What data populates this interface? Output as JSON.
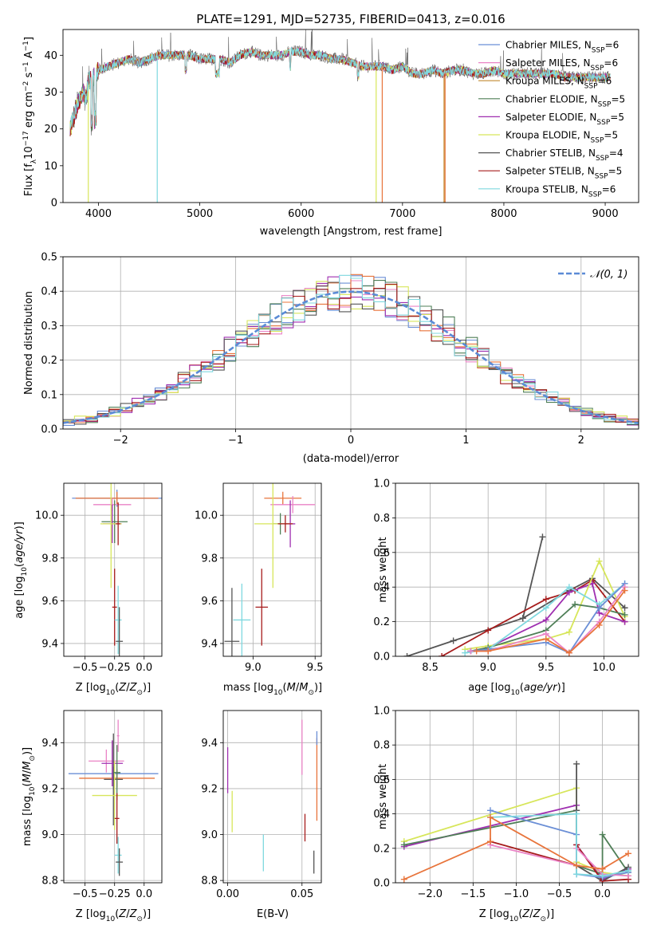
{
  "figure": {
    "title": "PLATE=1291, MJD=52735, FIBERID=0413, z=0.016"
  },
  "colors": [
    "#6b8fd6",
    "#ea83c6",
    "#c08a30",
    "#4f7f57",
    "#9f2fb0",
    "#d7e65a",
    "#555555",
    "#a61c1c",
    "#7fd8df"
  ],
  "chart_data": [
    {
      "id": "spectrum",
      "type": "line",
      "title": "PLATE=1291, MJD=52735, FIBERID=0413, z=0.016",
      "xlabel": "wavelength [Angstrom, rest frame]",
      "ylabel": "Flux [fλ10⁻¹⁷ erg cm⁻² s⁻¹ Å⁻¹]",
      "xlim": [
        3650,
        9330
      ],
      "ylim": [
        0,
        47
      ],
      "xticks": [
        4000,
        5000,
        6000,
        7000,
        8000,
        9000
      ],
      "yticks": [
        0,
        10,
        20,
        30,
        40
      ],
      "legend_position": "upper right",
      "continuum": {
        "x": [
          3720,
          3800,
          3850,
          3880,
          3900,
          3950,
          4000,
          4100,
          4200,
          4300,
          4400,
          4500,
          4600,
          4700,
          4800,
          4900,
          5000,
          5100,
          5200,
          5300,
          5400,
          5500,
          5600,
          5700,
          5800,
          5900,
          6000,
          6100,
          6200,
          6300,
          6400,
          6500,
          6600,
          6700,
          6800,
          6900,
          7000,
          7100,
          7200,
          7300,
          7400,
          7500,
          7600,
          7700,
          7800,
          7900,
          8000,
          8100,
          8200,
          8300,
          8400,
          8500,
          8600,
          8700,
          8800,
          8900,
          9000,
          9050
        ],
        "y": [
          20,
          27,
          30,
          28,
          33,
          34,
          36,
          37,
          38,
          39,
          38,
          39,
          40,
          40,
          40,
          40,
          39,
          39,
          39,
          38,
          40,
          41,
          40,
          40,
          40,
          41,
          41,
          40,
          40,
          39,
          39,
          38,
          37,
          37,
          37,
          36,
          37,
          35,
          35,
          36,
          35,
          36,
          36,
          35,
          35,
          36,
          35,
          35,
          35,
          35,
          35,
          35,
          34,
          34,
          34,
          34,
          34,
          34
        ]
      },
      "series": [
        {
          "name": "Chabrier MILES, N_SSP=6",
          "label_main": "Chabrier MILES, N",
          "label_sub": "SSP",
          "label_end": "=6",
          "dips": []
        },
        {
          "name": "Salpeter MILES, N_SSP=6",
          "label_main": "Salpeter MILES, N",
          "label_sub": "SSP",
          "label_end": "=6",
          "dips": []
        },
        {
          "name": "Kroupa MILES, N_SSP=6",
          "label_main": "Kroupa MILES, N",
          "label_sub": "SSP",
          "label_end": "=6",
          "dips": [
            7410
          ]
        },
        {
          "name": "Chabrier ELODIE, N_SSP=5",
          "label_main": "Chabrier ELODIE, N",
          "label_sub": "SSP",
          "label_end": "=5",
          "dips": []
        },
        {
          "name": "Salpeter ELODIE, N_SSP=5",
          "label_main": "Salpeter ELODIE, N",
          "label_sub": "SSP",
          "label_end": "=5",
          "dips": []
        },
        {
          "name": "Kroupa ELODIE, N_SSP=5",
          "label_main": "Kroupa ELODIE, N",
          "label_sub": "SSP",
          "label_end": "=5",
          "dips": [
            3900,
            6740
          ]
        },
        {
          "name": "Chabrier STELIB, N_SSP=4",
          "label_main": "Chabrier STELIB, N",
          "label_sub": "SSP",
          "label_end": "=4",
          "dips": []
        },
        {
          "name": "Salpeter STELIB, N_SSP=5",
          "label_main": "Salpeter STELIB, N",
          "label_sub": "SSP",
          "label_end": "=5",
          "dips": []
        },
        {
          "name": "Kroupa STELIB, N_SSP=6",
          "label_main": "Kroupa STELIB, N",
          "label_sub": "SSP",
          "label_end": "=6",
          "dips": [
            4580
          ]
        }
      ],
      "extra_dips": [
        {
          "x": 6800,
          "color": "#e8743b"
        },
        {
          "x": 7420,
          "color": "#e8743b"
        }
      ]
    },
    {
      "id": "residuals",
      "type": "histogram",
      "xlabel": "(data-model)/error",
      "ylabel": "Normed distribution",
      "xlim": [
        -2.5,
        2.5
      ],
      "ylim": [
        0,
        0.5
      ],
      "xticks": [
        -2,
        -1,
        0,
        1,
        2
      ],
      "yticks": [
        0.0,
        0.1,
        0.2,
        0.3,
        0.4,
        0.5
      ],
      "grid": true,
      "bin_width": 0.1,
      "reference": {
        "name": "N(0,1)",
        "label": "𝒩(0, 1)",
        "color": "#5b8bd6",
        "style": "dashed",
        "mean": 0,
        "sigma": 1
      },
      "series_colors": [
        "#6b8fd6",
        "#ea83c6",
        "#e8743b",
        "#4f7f57",
        "#9f2fb0",
        "#d7e65a",
        "#555555",
        "#a61c1c",
        "#7fd8df"
      ]
    },
    {
      "id": "age-vs-Z",
      "type": "errorbar",
      "xlabel": "Z [log10(Z/Z☉)]",
      "ylabel": "age [log10(age/yr)]",
      "xlim": [
        -0.68,
        0.15
      ],
      "ylim": [
        9.34,
        10.15
      ],
      "xticks": [
        -0.5,
        -0.25,
        0.0
      ],
      "ytick_values": [
        9.4,
        9.6,
        9.8,
        10.0
      ],
      "grid": true,
      "points": [
        {
          "x": -0.23,
          "y": 10.08,
          "xerr": 0.38,
          "yerr": 0.04,
          "color": "#6b8fd6"
        },
        {
          "x": -0.23,
          "y": 10.08,
          "xerr": 0.35,
          "yerr": 0.03,
          "color": "#e8743b"
        },
        {
          "x": -0.27,
          "y": 10.05,
          "xerr": 0.16,
          "yerr": 0.03,
          "color": "#ea83c6"
        },
        {
          "x": -0.25,
          "y": 9.97,
          "xerr": 0.11,
          "yerr": 0.1,
          "color": "#4f7f57"
        },
        {
          "x": -0.27,
          "y": 9.96,
          "xerr": 0.08,
          "yerr": 0.09,
          "color": "#9f2fb0"
        },
        {
          "x": -0.28,
          "y": 9.96,
          "xerr": 0.09,
          "yerr": 0.3,
          "color": "#d7e65a"
        },
        {
          "x": -0.22,
          "y": 9.96,
          "xerr": 0.02,
          "yerr": 0.1,
          "color": "#a61c1c"
        },
        {
          "x": -0.25,
          "y": 9.57,
          "xerr": 0.02,
          "yerr": 0.18,
          "color": "#a61c1c"
        },
        {
          "x": -0.22,
          "y": 9.51,
          "xerr": 0.03,
          "yerr": 0.16,
          "color": "#7fd8df"
        },
        {
          "x": -0.21,
          "y": 9.41,
          "xerr": 0.03,
          "yerr": 0.16,
          "color": "#555555"
        }
      ]
    },
    {
      "id": "age-vs-mass",
      "type": "errorbar",
      "xlabel": "mass [log10(M/M☉)]",
      "ylabel": "",
      "xlim": [
        8.76,
        9.55
      ],
      "ylim": [
        9.34,
        10.15
      ],
      "xticks": [
        9.0,
        9.5
      ],
      "ytick_values": [
        9.4,
        9.6,
        9.8,
        10.0
      ],
      "grid": true,
      "points": [
        {
          "x": 9.24,
          "y": 10.08,
          "xerr": 0.15,
          "yerr": 0.03,
          "color": "#e8743b"
        },
        {
          "x": 9.32,
          "y": 10.05,
          "xerr": 0.18,
          "yerr": 0.04,
          "color": "#ea83c6"
        },
        {
          "x": 9.22,
          "y": 9.96,
          "xerr": 0.06,
          "yerr": 0.05,
          "color": "#4f7f57"
        },
        {
          "x": 9.3,
          "y": 9.96,
          "xerr": 0.04,
          "yerr": 0.11,
          "color": "#9f2fb0"
        },
        {
          "x": 9.16,
          "y": 9.96,
          "xerr": 0.15,
          "yerr": 0.3,
          "color": "#d7e65a"
        },
        {
          "x": 9.26,
          "y": 9.96,
          "xerr": 0.06,
          "yerr": 0.04,
          "color": "#a61c1c"
        },
        {
          "x": 9.07,
          "y": 9.57,
          "xerr": 0.05,
          "yerr": 0.18,
          "color": "#a61c1c"
        },
        {
          "x": 8.91,
          "y": 9.51,
          "xerr": 0.07,
          "yerr": 0.17,
          "color": "#7fd8df"
        },
        {
          "x": 8.83,
          "y": 9.41,
          "xerr": 0.06,
          "yerr": 0.25,
          "color": "#555555"
        }
      ]
    },
    {
      "id": "massweight-vs-age",
      "type": "line",
      "xlabel": "age [log10(age/yr)]",
      "ylabel": "mass weight",
      "xlim": [
        8.2,
        10.3
      ],
      "ylim": [
        0,
        1
      ],
      "xticks": [
        8.5,
        9.0,
        9.5,
        10.0
      ],
      "yticks": [
        0.0,
        0.2,
        0.4,
        0.6,
        0.8,
        1.0
      ],
      "grid": true,
      "series": [
        {
          "color": "#555555",
          "x": [
            8.3,
            8.7,
            9.3,
            9.47,
            9.3,
            9.7,
            9.9,
            10.18
          ],
          "y": [
            0.0,
            0.09,
            0.22,
            0.69,
            0.22,
            0.38,
            0.45,
            0.28
          ]
        },
        {
          "color": "#a61c1c",
          "x": [
            8.6,
            9.0,
            9.5,
            9.75,
            9.9,
            10.18
          ],
          "y": [
            0.0,
            0.15,
            0.33,
            0.38,
            0.44,
            0.2
          ]
        },
        {
          "color": "#9f2fb0",
          "x": [
            8.85,
            9.0,
            9.5,
            9.7,
            9.9,
            9.96,
            10.18
          ],
          "y": [
            0.03,
            0.05,
            0.21,
            0.37,
            0.42,
            0.25,
            0.2
          ]
        },
        {
          "color": "#d7e65a",
          "x": [
            8.8,
            9.0,
            9.5,
            9.7,
            9.96,
            10.18
          ],
          "y": [
            0.04,
            0.06,
            0.1,
            0.14,
            0.55,
            0.23
          ]
        },
        {
          "color": "#4f7f57",
          "x": [
            8.85,
            9.0,
            9.5,
            9.75,
            9.96,
            10.18
          ],
          "y": [
            0.03,
            0.05,
            0.15,
            0.3,
            0.28,
            0.24
          ]
        },
        {
          "color": "#7fd8df",
          "x": [
            8.8,
            9.0,
            9.5,
            9.7,
            9.96,
            10.18
          ],
          "y": [
            0.02,
            0.04,
            0.28,
            0.4,
            0.3,
            0.42
          ]
        },
        {
          "color": "#6b8fd6",
          "x": [
            8.85,
            9.0,
            9.5,
            9.7,
            9.96,
            10.18
          ],
          "y": [
            0.03,
            0.04,
            0.08,
            0.02,
            0.28,
            0.42
          ]
        },
        {
          "color": "#ea83c6",
          "x": [
            8.85,
            9.0,
            9.5,
            9.7,
            9.96,
            10.18
          ],
          "y": [
            0.03,
            0.03,
            0.13,
            0.02,
            0.2,
            0.4
          ]
        },
        {
          "color": "#e8743b",
          "x": [
            8.9,
            9.0,
            9.5,
            9.7,
            9.96,
            10.18
          ],
          "y": [
            0.03,
            0.03,
            0.1,
            0.02,
            0.18,
            0.38
          ]
        }
      ]
    },
    {
      "id": "mass-vs-Z",
      "type": "errorbar",
      "xlabel": "Z [log10(Z/Z☉)]",
      "ylabel": "mass [log10(M/M☉)]",
      "xlim": [
        -0.68,
        0.15
      ],
      "ylim": [
        8.79,
        9.54
      ],
      "xticks": [
        -0.5,
        -0.25,
        0.0
      ],
      "ytick_values": [
        8.8,
        9.0,
        9.2,
        9.4
      ],
      "grid": true,
      "points": [
        {
          "x": -0.26,
          "y": 9.265,
          "xerr": 0.38,
          "yerr": 0.03,
          "color": "#6b8fd6"
        },
        {
          "x": -0.23,
          "y": 9.245,
          "xerr": 0.32,
          "yerr": 0.04,
          "color": "#e8743b"
        },
        {
          "x": -0.32,
          "y": 9.32,
          "xerr": 0.15,
          "yerr": 0.05,
          "color": "#ea83c6"
        },
        {
          "x": -0.26,
          "y": 9.24,
          "xerr": 0.08,
          "yerr": 0.2,
          "color": "#555555"
        },
        {
          "x": -0.27,
          "y": 9.31,
          "xerr": 0.09,
          "yerr": 0.1,
          "color": "#9f2fb0"
        },
        {
          "x": -0.25,
          "y": 9.17,
          "xerr": 0.19,
          "yerr": 0.15,
          "color": "#d7e65a"
        },
        {
          "x": -0.23,
          "y": 9.27,
          "xerr": 0.03,
          "yerr": 0.12,
          "color": "#4f7f57"
        },
        {
          "x": -0.23,
          "y": 9.07,
          "xerr": 0.02,
          "yerr": 0.11,
          "color": "#a61c1c"
        },
        {
          "x": -0.22,
          "y": 8.91,
          "xerr": 0.03,
          "yerr": 0.08,
          "color": "#7fd8df"
        },
        {
          "x": -0.21,
          "y": 8.88,
          "xerr": 0.03,
          "yerr": 0.06,
          "color": "#555555"
        },
        {
          "x": -0.22,
          "y": 9.43,
          "xerr": 0.01,
          "yerr": 0.07,
          "color": "#ea83c6"
        }
      ]
    },
    {
      "id": "mass-vs-EBV",
      "type": "errorbar",
      "xlabel": "E(B-V)",
      "ylabel": "",
      "xlim": [
        -0.003,
        0.063
      ],
      "ylim": [
        8.79,
        9.54
      ],
      "xticks": [
        0.0,
        0.05
      ],
      "ytick_values": [
        8.8,
        9.0,
        9.2,
        9.4
      ],
      "grid": true,
      "points": [
        {
          "x": 0.0,
          "y": 9.28,
          "xerr": 0,
          "yerr": 0.1,
          "color": "#9f2fb0"
        },
        {
          "x": 0.003,
          "y": 9.1,
          "xerr": 0,
          "yerr": 0.09,
          "color": "#d7e65a"
        },
        {
          "x": 0.024,
          "y": 8.92,
          "xerr": 0,
          "yerr": 0.08,
          "color": "#7fd8df"
        },
        {
          "x": 0.05,
          "y": 9.38,
          "xerr": 0,
          "yerr": 0.12,
          "color": "#ea83c6"
        },
        {
          "x": 0.052,
          "y": 9.03,
          "xerr": 0,
          "yerr": 0.06,
          "color": "#a61c1c"
        },
        {
          "x": 0.058,
          "y": 8.88,
          "xerr": 0,
          "yerr": 0.05,
          "color": "#555555"
        },
        {
          "x": 0.06,
          "y": 9.24,
          "xerr": 0,
          "yerr": 0.18,
          "color": "#e8743b"
        },
        {
          "x": 0.06,
          "y": 9.42,
          "xerr": 0,
          "yerr": 0.03,
          "color": "#6b8fd6"
        }
      ]
    },
    {
      "id": "massweight-vs-Z",
      "type": "line",
      "xlabel": "Z [log10(Z/Z☉)]",
      "ylabel": "mass weight",
      "xlim": [
        -2.4,
        0.42
      ],
      "ylim": [
        0,
        1
      ],
      "xticks": [
        -2.0,
        -1.5,
        -1.0,
        -0.5,
        0.0
      ],
      "yticks": [
        0.0,
        0.2,
        0.4,
        0.6,
        0.8,
        1.0
      ],
      "grid": true,
      "series": [
        {
          "color": "#d7e65a",
          "x": [
            -2.3,
            -0.3,
            -0.3,
            0.0,
            0.3
          ],
          "y": [
            0.24,
            0.55,
            0.12,
            0.06,
            0.04
          ]
        },
        {
          "color": "#9f2fb0",
          "x": [
            -2.3,
            -0.3,
            -0.3,
            0.0,
            0.3
          ],
          "y": [
            0.21,
            0.45,
            0.22,
            0.02,
            0.08
          ]
        },
        {
          "color": "#4f7f57",
          "x": [
            -2.3,
            -0.3,
            -0.3,
            0.0,
            0.0,
            0.3
          ],
          "y": [
            0.22,
            0.42,
            0.1,
            0.05,
            0.28,
            0.06
          ]
        },
        {
          "color": "#555555",
          "x": [
            -0.3,
            -0.3,
            -0.3,
            0.0,
            0.3
          ],
          "y": [
            0.69,
            0.42,
            0.1,
            0.01,
            0.09
          ]
        },
        {
          "color": "#a61c1c",
          "x": [
            -1.3,
            -0.3,
            -0.3,
            0.0,
            0.3
          ],
          "y": [
            0.24,
            0.1,
            0.22,
            0.01,
            0.02
          ]
        },
        {
          "color": "#6b8fd6",
          "x": [
            -1.3,
            -0.3,
            -0.3,
            0.0,
            0.3
          ],
          "y": [
            0.42,
            0.28,
            0.05,
            0.03,
            0.06
          ]
        },
        {
          "color": "#ea83c6",
          "x": [
            -1.3,
            -0.3,
            -0.3,
            0.0,
            0.3
          ],
          "y": [
            0.22,
            0.1,
            0.2,
            0.05,
            0.04
          ]
        },
        {
          "color": "#7fd8df",
          "x": [
            -1.3,
            -0.3,
            -0.3,
            0.0,
            0.3
          ],
          "y": [
            0.38,
            0.4,
            0.05,
            0.04,
            0.07
          ]
        },
        {
          "color": "#e8743b",
          "x": [
            -2.3,
            -1.3,
            -1.3,
            -0.3,
            0.0,
            0.3
          ],
          "y": [
            0.02,
            0.24,
            0.38,
            0.1,
            0.08,
            0.17
          ]
        }
      ]
    }
  ]
}
